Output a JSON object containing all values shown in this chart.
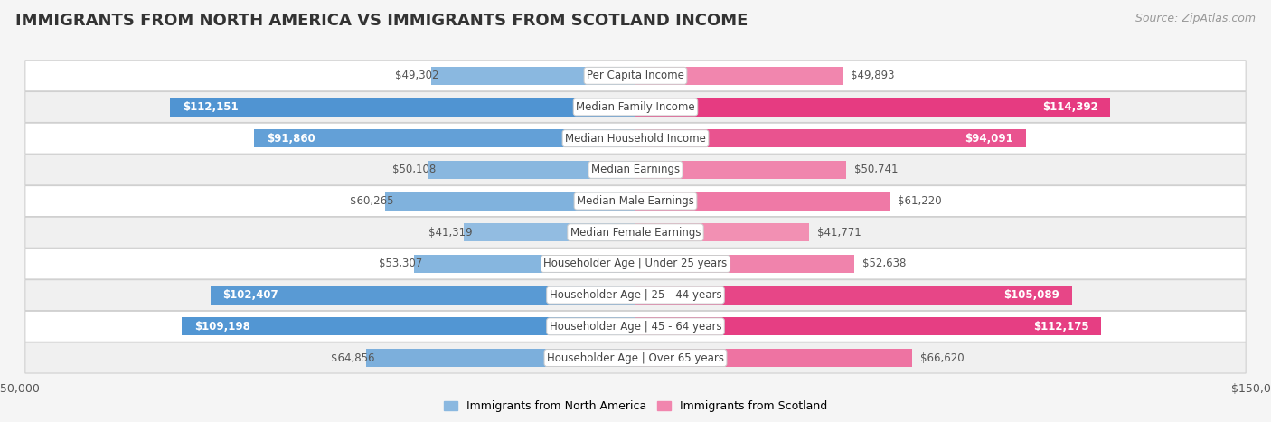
{
  "title": "IMMIGRANTS FROM NORTH AMERICA VS IMMIGRANTS FROM SCOTLAND INCOME",
  "source": "Source: ZipAtlas.com",
  "categories": [
    "Per Capita Income",
    "Median Family Income",
    "Median Household Income",
    "Median Earnings",
    "Median Male Earnings",
    "Median Female Earnings",
    "Householder Age | Under 25 years",
    "Householder Age | 25 - 44 years",
    "Householder Age | 45 - 64 years",
    "Householder Age | Over 65 years"
  ],
  "north_america_values": [
    49302,
    112151,
    91860,
    50108,
    60265,
    41319,
    53307,
    102407,
    109198,
    64856
  ],
  "scotland_values": [
    49893,
    114392,
    94091,
    50741,
    61220,
    41771,
    52638,
    105089,
    112175,
    66620
  ],
  "north_america_labels": [
    "$49,302",
    "$112,151",
    "$91,860",
    "$50,108",
    "$60,265",
    "$41,319",
    "$53,307",
    "$102,407",
    "$109,198",
    "$64,856"
  ],
  "scotland_labels": [
    "$49,893",
    "$114,392",
    "$94,091",
    "$50,741",
    "$61,220",
    "$41,771",
    "$52,638",
    "$105,089",
    "$112,175",
    "$66,620"
  ],
  "na_color_light": "#b8d4ea",
  "na_color_dark": "#5b9bd5",
  "sc_color_light": "#f9c0d0",
  "sc_color_dark": "#e84c8b",
  "label_color_inside": "#ffffff",
  "label_color_outside": "#555555",
  "inside_threshold": 75000,
  "background_color": "#f5f5f5",
  "row_bg_even": "#ffffff",
  "row_bg_odd": "#f0f0f0",
  "max_value": 150000,
  "legend_label_na": "Immigrants from North America",
  "legend_label_sc": "Immigrants from Scotland",
  "title_fontsize": 13,
  "source_fontsize": 9,
  "bar_height": 0.58,
  "category_fontsize": 8.5,
  "value_fontsize": 8.5
}
